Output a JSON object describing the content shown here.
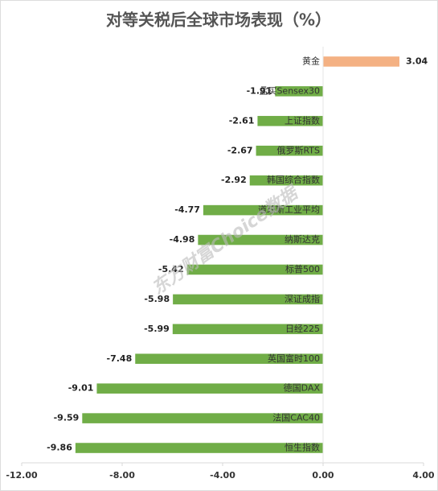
{
  "chart_data": {
    "type": "hbar",
    "title": "对等关税后全球市场表现（%）",
    "categories": [
      "黄金",
      "孟买Sensex30",
      "上证指数",
      "俄罗斯RTS",
      "韩国综合指数",
      "道琼斯工业平均",
      "纳斯达克",
      "标普500",
      "深证成指",
      "日经225",
      "英国富时100",
      "德国DAX",
      "法国CAC40",
      "恒生指数"
    ],
    "values": [
      3.04,
      -1.91,
      -2.61,
      -2.67,
      -2.92,
      -4.77,
      -4.98,
      -5.42,
      -5.98,
      -5.99,
      -7.48,
      -9.01,
      -9.59,
      -9.86
    ],
    "colors": [
      "#f4b183",
      "#70ad47",
      "#70ad47",
      "#70ad47",
      "#70ad47",
      "#70ad47",
      "#70ad47",
      "#70ad47",
      "#70ad47",
      "#70ad47",
      "#70ad47",
      "#70ad47",
      "#70ad47",
      "#70ad47"
    ],
    "xlim": [
      -12,
      4
    ],
    "xticks": [
      {
        "value": -12,
        "label": "-12.00"
      },
      {
        "value": -8,
        "label": "-8.00"
      },
      {
        "value": -4,
        "label": "-4.00"
      },
      {
        "value": 0,
        "label": "0.00"
      },
      {
        "value": 4,
        "label": "4.00"
      }
    ],
    "watermark": "东方财富Choice数据"
  }
}
